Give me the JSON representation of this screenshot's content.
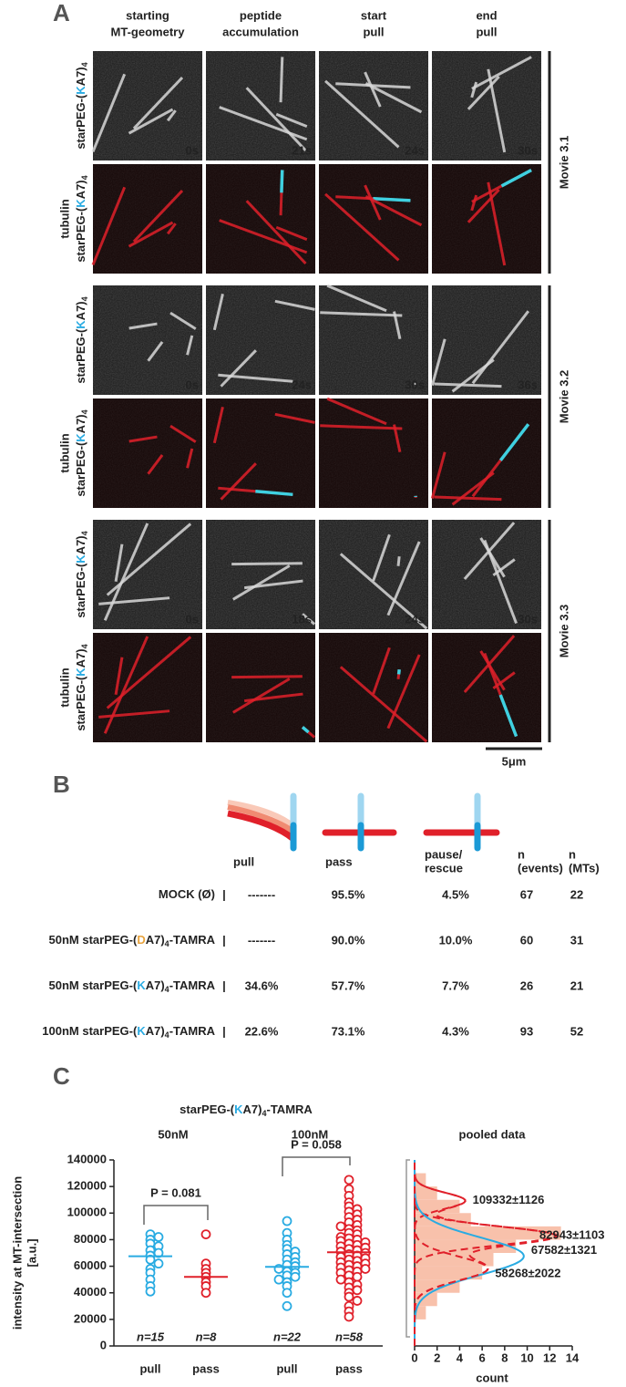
{
  "panel_a": {
    "letter": "A",
    "columns": [
      {
        "lines": [
          "starting",
          "MT-geometry"
        ]
      },
      {
        "lines": [
          "peptide",
          "accumulation"
        ]
      },
      {
        "lines": [
          "start",
          "pull"
        ],
        "accent": "#8dc63f"
      },
      {
        "lines": [
          "end",
          "pull"
        ],
        "accent": "#f7941d"
      }
    ],
    "gray_label": {
      "pre": "starPEG-(",
      "hl": "K",
      "post": "A7)",
      "sub": "4"
    },
    "merge_label_top": "tubulin",
    "merge_label": {
      "pre": "starPEG-(",
      "hl": "K",
      "post": "A7)",
      "sub": "4"
    },
    "movies": [
      {
        "label": "Movie 3.1",
        "times": [
          "0s",
          "21s",
          "24s",
          "30s"
        ]
      },
      {
        "label": "Movie 3.2",
        "times": [
          "0s",
          "24s",
          "30s",
          "36s"
        ]
      },
      {
        "label": "Movie 3.3",
        "times": [
          "0s",
          "18s",
          "24s",
          "30s"
        ]
      }
    ],
    "scale_bar": "5μm"
  },
  "panel_b": {
    "letter": "B",
    "headers": [
      [
        "pull"
      ],
      [
        "pass"
      ],
      [
        "pause/",
        "rescue"
      ],
      [
        "n",
        "(events)"
      ],
      [
        "n",
        "(MTs)"
      ]
    ],
    "separator": "|",
    "rows": [
      {
        "label": {
          "pre": "MOCK (Ø)"
        },
        "cells": [
          "-------",
          "95.5%",
          "4.5%",
          "67",
          "22"
        ]
      },
      {
        "label": {
          "pre": "50nM starPEG-(",
          "hl": "D",
          "post": "A7)",
          "sub": "4",
          "tail": "-TAMRA"
        },
        "hl_color": "#e8a33d",
        "cells": [
          "-------",
          "90.0%",
          "10.0%",
          "60",
          "31"
        ]
      },
      {
        "label": {
          "pre": "50nM starPEG-(",
          "hl": "K",
          "post": "A7)",
          "sub": "4",
          "tail": "-TAMRA"
        },
        "hl_color": "#29abe2",
        "cells": [
          "34.6%",
          "57.7%",
          "7.7%",
          "26",
          "21"
        ]
      },
      {
        "label": {
          "pre": "100nM starPEG-(",
          "hl": "K",
          "post": "A7)",
          "sub": "4",
          "tail": "-TAMRA"
        },
        "hl_color": "#29abe2",
        "cells": [
          "22.6%",
          "73.1%",
          "4.3%",
          "93",
          "52"
        ]
      }
    ]
  },
  "chart_data": [
    {
      "type": "strip",
      "letter": "C",
      "title": {
        "pre": "starPEG-(",
        "hl": "K",
        "post": "A7)",
        "sub": "4",
        "tail": "-TAMRA"
      },
      "group_labels": [
        "50nM",
        "100nM"
      ],
      "ylabel": [
        "intensity at MT-intersection",
        "[a.u.]"
      ],
      "ylim": [
        0,
        140000
      ],
      "yticks": [
        0,
        20000,
        40000,
        60000,
        80000,
        100000,
        120000,
        140000
      ],
      "groups": [
        {
          "name": "pull",
          "color": "#29abe2",
          "n_label": "n=15",
          "mean": 67500,
          "values": [
            84000,
            82000,
            80000,
            77000,
            75000,
            72000,
            70000,
            68000,
            65000,
            62000,
            58000,
            55000,
            50000,
            45000,
            41000
          ]
        },
        {
          "name": "pass",
          "color": "#e0202a",
          "n_label": "n=8",
          "mean": 52000,
          "values": [
            84000,
            62000,
            58000,
            55000,
            52000,
            48000,
            45000,
            40000
          ]
        },
        {
          "name": "pull",
          "color": "#29abe2",
          "n_label": "n=22",
          "mean": 59500,
          "values": [
            94000,
            85000,
            80000,
            76000,
            73000,
            71000,
            69000,
            67000,
            65000,
            63000,
            61000,
            60000,
            58000,
            56000,
            55000,
            53000,
            52000,
            50000,
            48000,
            45000,
            40000,
            30000
          ]
        },
        {
          "name": "pass",
          "color": "#e0202a",
          "n_label": "n=58",
          "mean": 70500,
          "values": [
            125000,
            118000,
            113000,
            108000,
            105000,
            103000,
            101000,
            99000,
            97000,
            95000,
            93000,
            91000,
            90000,
            88000,
            87000,
            85000,
            84000,
            82000,
            81000,
            80000,
            79000,
            78000,
            77000,
            76000,
            75000,
            74000,
            73000,
            72000,
            71000,
            70000,
            69000,
            68000,
            67000,
            66000,
            65000,
            64000,
            63000,
            62000,
            61000,
            60000,
            59000,
            58000,
            57000,
            56000,
            55000,
            53000,
            52000,
            50000,
            48000,
            46000,
            44000,
            42000,
            40000,
            37000,
            34000,
            30000,
            26000,
            22000
          ]
        }
      ],
      "annotations": [
        "P = 0.081",
        "P = 0.058"
      ]
    },
    {
      "type": "histogram",
      "title": "pooled data",
      "bins": [
        20000,
        30000,
        40000,
        50000,
        60000,
        70000,
        80000,
        90000,
        100000,
        110000,
        120000,
        130000
      ],
      "counts": [
        1,
        2,
        4,
        6,
        7,
        9,
        13,
        5,
        4,
        2,
        1
      ],
      "color": "#f8c1ab",
      "ylim": [
        0,
        140000
      ],
      "xlim": [
        0,
        14
      ],
      "xticks": [
        0,
        2,
        4,
        6,
        8,
        10,
        12,
        14
      ],
      "xlabel": "count",
      "fits": [
        {
          "label": "109332±1126",
          "mean": 109332,
          "sigma": 6000,
          "amplitude": 4.5,
          "color": "#e0202a"
        },
        {
          "label": "82943±1103",
          "mean": 82943,
          "sigma": 7000,
          "amplitude": 12.5,
          "color": "#e0202a"
        },
        {
          "label": "67582±1321",
          "mean": 67582,
          "sigma": 14000,
          "amplitude": 9.7,
          "color": "#29abe2"
        },
        {
          "label": "58268±2022",
          "mean": 58268,
          "sigma": 9000,
          "amplitude": 6.5,
          "color": "#e0202a"
        }
      ]
    }
  ]
}
